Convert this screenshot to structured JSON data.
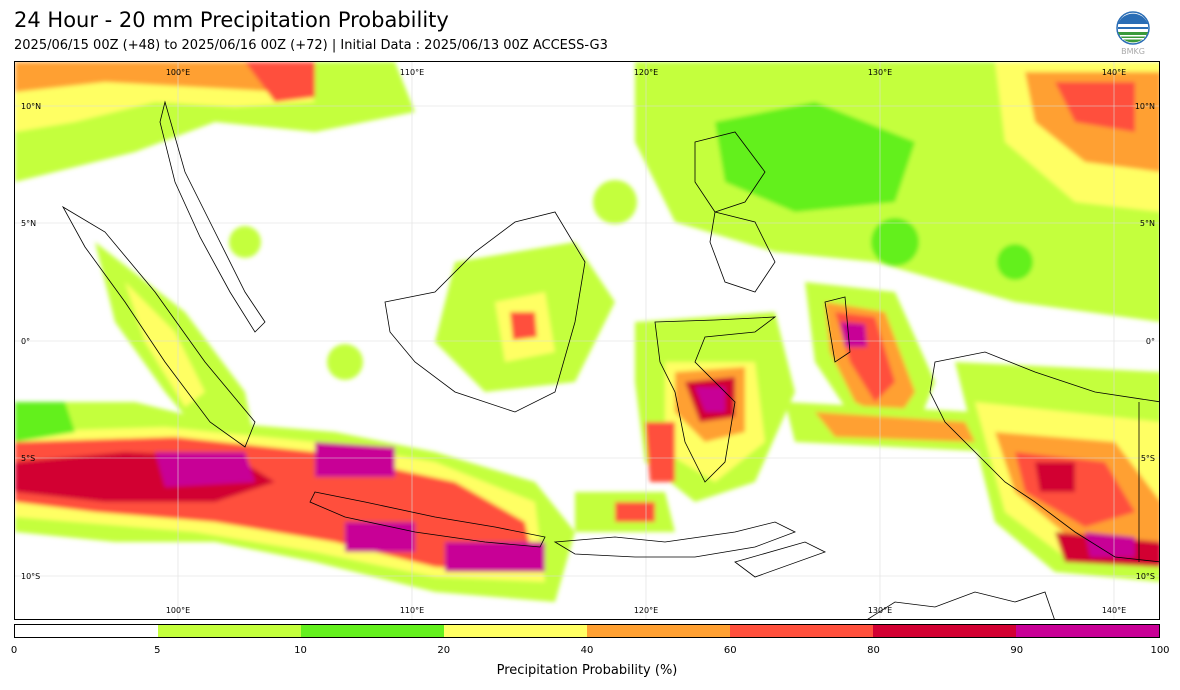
{
  "header": {
    "title": "24 Hour - 20 mm Precipitation Probability",
    "subtitle": "2025/06/15 00Z (+48) to 2025/06/16 00Z (+72) | Initial Data : 2025/06/13 00Z ACCESS-G3",
    "logo_text": "BMKG"
  },
  "map": {
    "lon_labels": [
      "100°E",
      "110°E",
      "120°E",
      "130°E",
      "140°E"
    ],
    "lat_labels": [
      "10°N",
      "5°N",
      "0°",
      "5°S",
      "10°S"
    ],
    "extent": {
      "lon_min": 93,
      "lon_max": 142,
      "lat_min": -12,
      "lat_max": 12
    }
  },
  "colorbar": {
    "title": "Precipitation Probability (%)",
    "ticks": [
      "0",
      "5",
      "10",
      "20",
      "40",
      "60",
      "80",
      "90",
      "100"
    ],
    "colors": [
      "#ffffff",
      "#c4ff3c",
      "#64f01e",
      "#ffff64",
      "#ffa032",
      "#ff503c",
      "#d20032",
      "#c80096"
    ]
  }
}
